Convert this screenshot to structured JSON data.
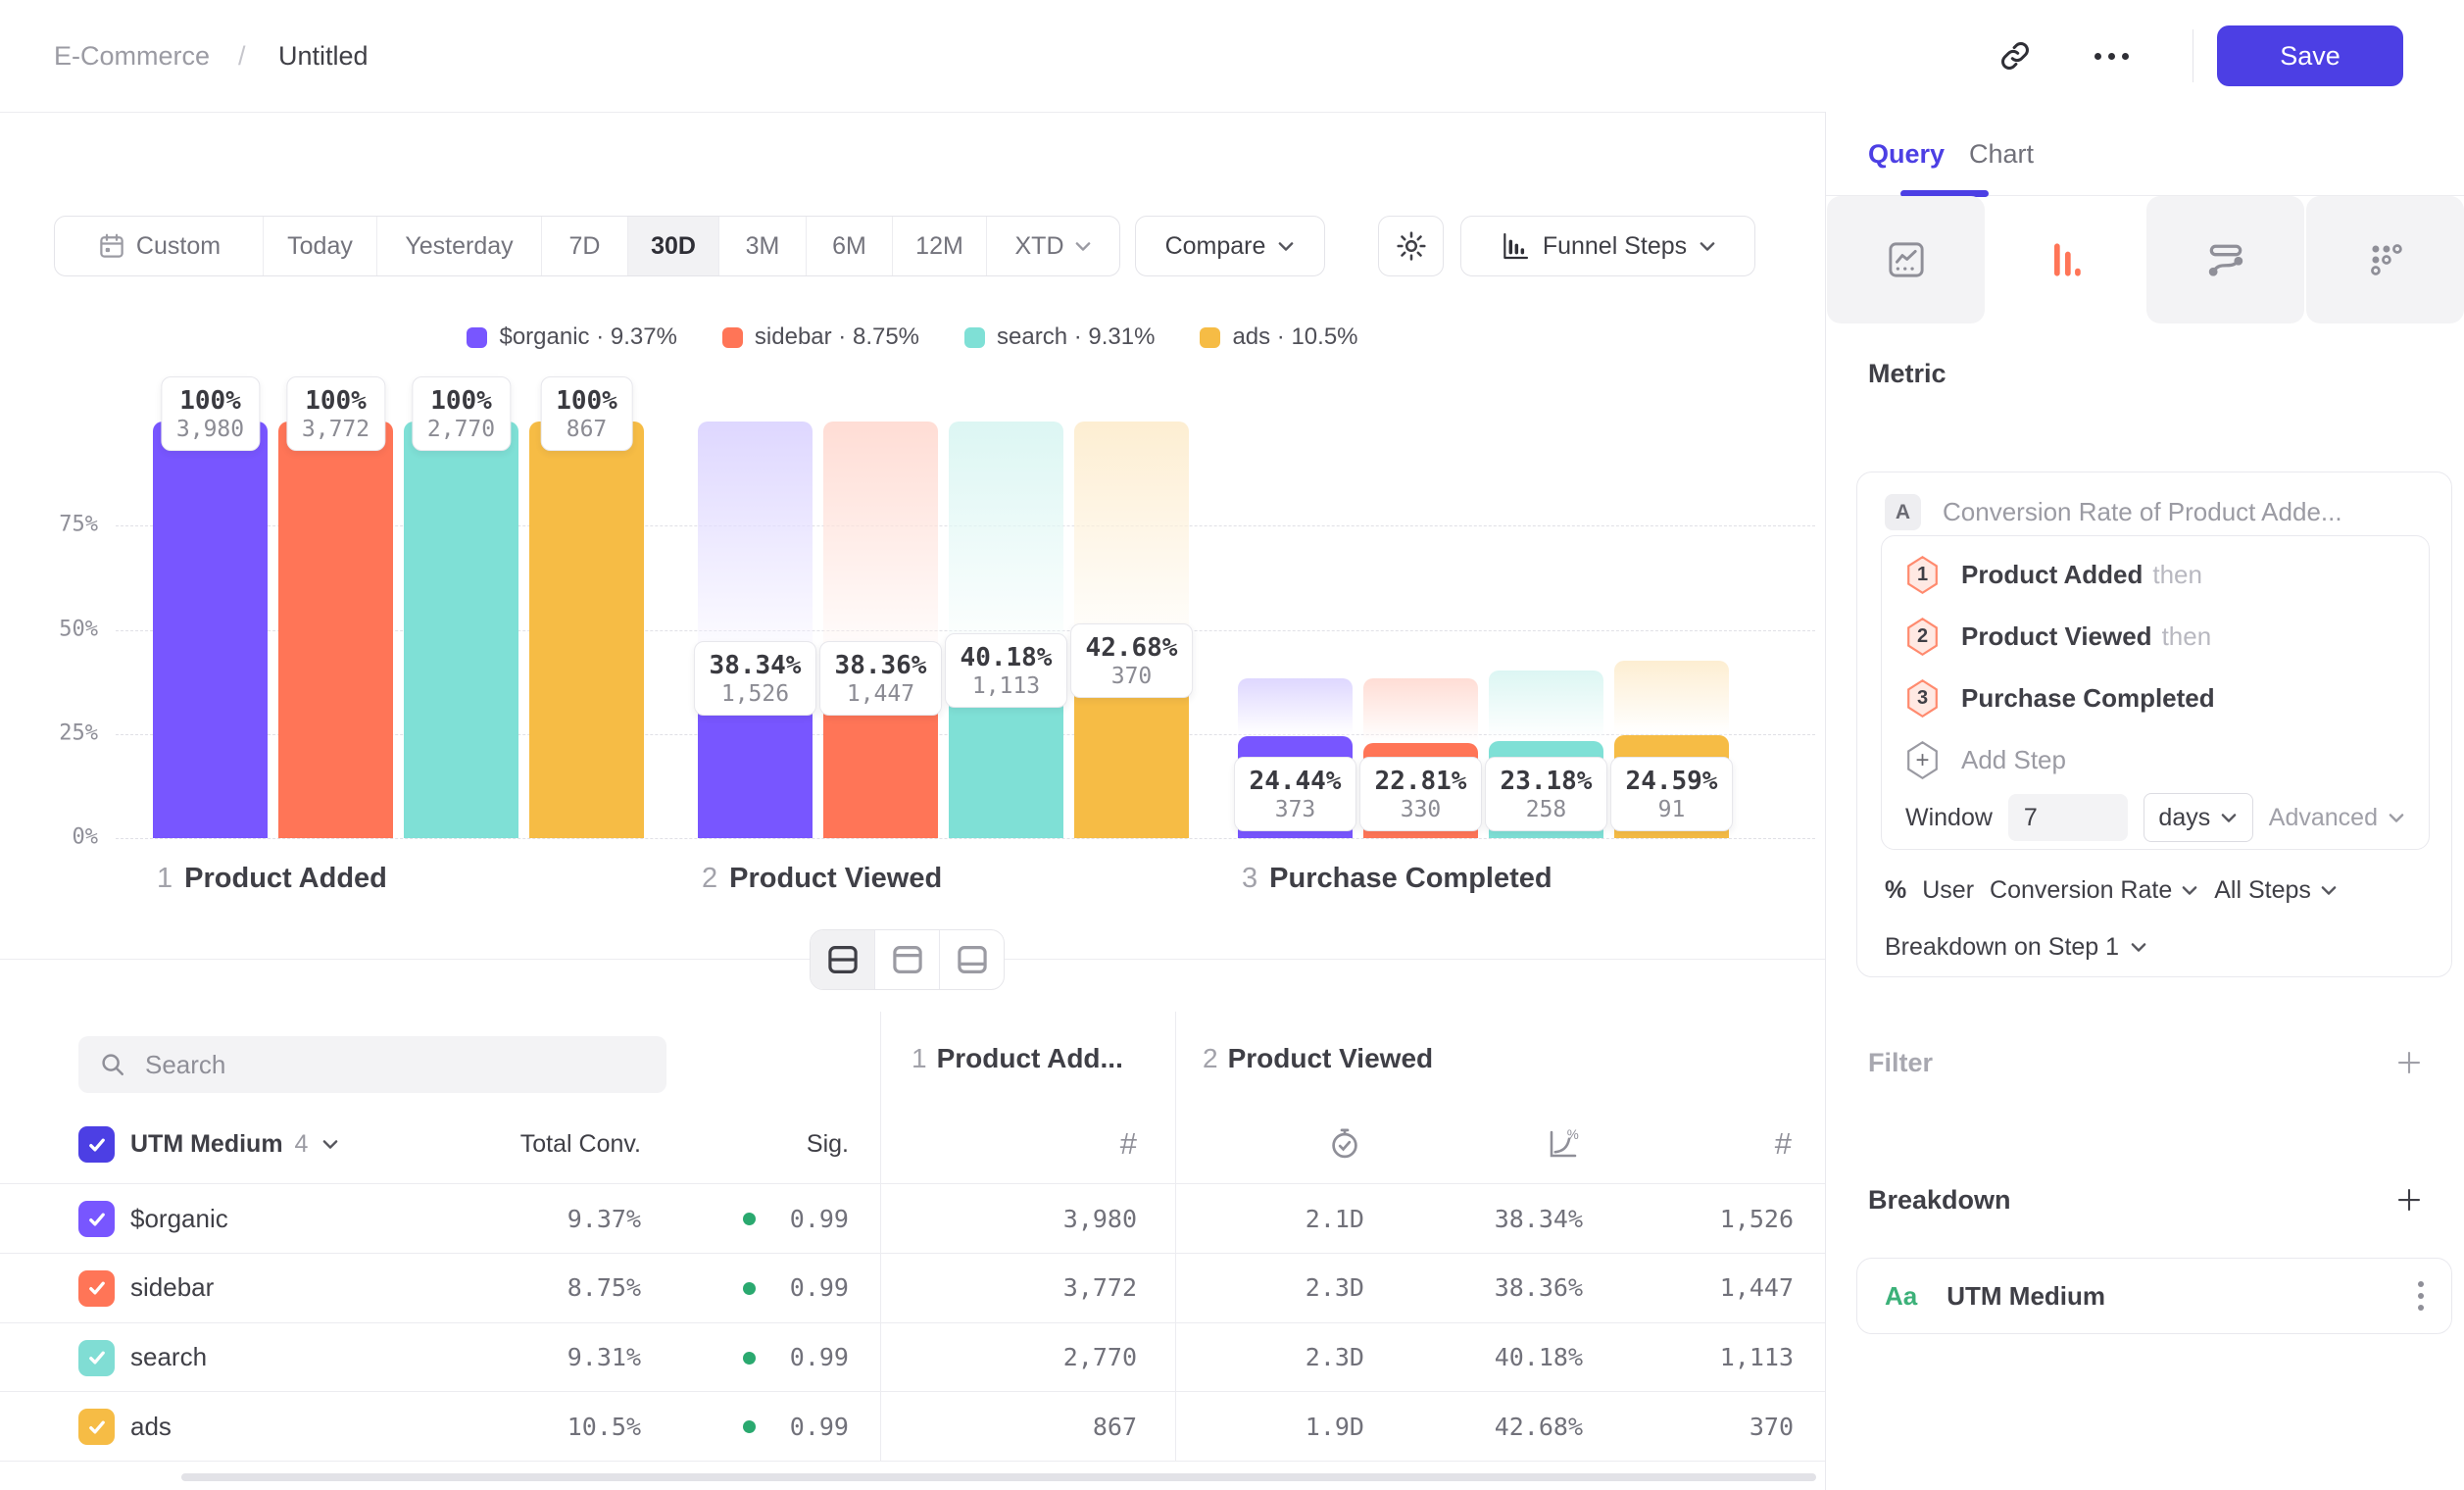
{
  "colors": {
    "accent": "#4c3fe4",
    "sig_green": "#2aa96f",
    "funnel_tab": "#ff7557",
    "aa_green": "#3cb179"
  },
  "topbar": {
    "breadcrumb_root": "E-Commerce",
    "breadcrumb_sep": "/",
    "breadcrumb_leaf": "Untitled",
    "save_label": "Save"
  },
  "toolbar": {
    "ranges": [
      "Custom",
      "Today",
      "Yesterday",
      "7D",
      "30D",
      "3M",
      "6M",
      "12M",
      "XTD"
    ],
    "selected_range": "30D",
    "compare_label": "Compare",
    "chart_type_label": "Funnel Steps"
  },
  "chart_data": {
    "type": "bar",
    "subtype": "funnel-steps",
    "ylim": [
      0,
      100
    ],
    "yticks": [
      {
        "label": "75%",
        "v": 75
      },
      {
        "label": "50%",
        "v": 50
      },
      {
        "label": "25%",
        "v": 25
      },
      {
        "label": "0%",
        "v": 0
      }
    ],
    "grid": "dashed-horizontal",
    "legend_position": "top-center",
    "steps": [
      {
        "num": "1",
        "label": "Product Added"
      },
      {
        "num": "2",
        "label": "Product Viewed"
      },
      {
        "num": "3",
        "label": "Purchase Completed"
      }
    ],
    "series": [
      {
        "name": "$organic",
        "overall": "9.37%",
        "color": "#7856ff",
        "light": "#ded7ff",
        "values": [
          {
            "pct": 100,
            "pct_label": "100%",
            "count": "3,980"
          },
          {
            "pct": 38.34,
            "pct_label": "38.34%",
            "count": "1,526"
          },
          {
            "pct": 24.44,
            "pct_label": "24.44%",
            "count": "373"
          }
        ]
      },
      {
        "name": "sidebar",
        "overall": "8.75%",
        "color": "#ff7557",
        "light": "#ffddd5",
        "values": [
          {
            "pct": 100,
            "pct_label": "100%",
            "count": "3,772"
          },
          {
            "pct": 38.36,
            "pct_label": "38.36%",
            "count": "1,447"
          },
          {
            "pct": 22.81,
            "pct_label": "22.81%",
            "count": "330"
          }
        ]
      },
      {
        "name": "search",
        "overall": "9.31%",
        "color": "#7fe0d6",
        "light": "#dcf6f3",
        "values": [
          {
            "pct": 100,
            "pct_label": "100%",
            "count": "2,770"
          },
          {
            "pct": 40.18,
            "pct_label": "40.18%",
            "count": "1,113"
          },
          {
            "pct": 23.18,
            "pct_label": "23.18%",
            "count": "258"
          }
        ]
      },
      {
        "name": "ads",
        "overall": "10.5%",
        "color": "#f6bc45",
        "light": "#fdeed2",
        "values": [
          {
            "pct": 100,
            "pct_label": "100%",
            "count": "867"
          },
          {
            "pct": 42.68,
            "pct_label": "42.68%",
            "count": "370"
          },
          {
            "pct": 24.59,
            "pct_label": "24.59%",
            "count": "91"
          }
        ]
      }
    ],
    "legend_separator": "·"
  },
  "table": {
    "search_placeholder": "Search",
    "group_label": "UTM Medium",
    "group_count": "4",
    "total_header": "Total Conv.",
    "sig_header": "Sig.",
    "step1_header": {
      "num": "1",
      "label": "Product Add..."
    },
    "step2_header": {
      "num": "2",
      "label": "Product Viewed"
    },
    "rows": [
      {
        "name": "$organic",
        "color": "#7856ff",
        "total": "9.37%",
        "sig": "0.99",
        "step1_count": "3,980",
        "step2_time": "2.1D",
        "step2_rate": "38.34%",
        "step2_count": "1,526"
      },
      {
        "name": "sidebar",
        "color": "#ff7557",
        "total": "8.75%",
        "sig": "0.99",
        "step1_count": "3,772",
        "step2_time": "2.3D",
        "step2_rate": "38.36%",
        "step2_count": "1,447"
      },
      {
        "name": "search",
        "color": "#80ddd4",
        "total": "9.31%",
        "sig": "0.99",
        "step1_count": "2,770",
        "step2_time": "2.3D",
        "step2_rate": "40.18%",
        "step2_count": "1,113"
      },
      {
        "name": "ads",
        "color": "#f6bc45",
        "total": "10.5%",
        "sig": "0.99",
        "step1_count": "867",
        "step2_time": "1.9D",
        "step2_rate": "42.68%",
        "step2_count": "370"
      }
    ]
  },
  "panel": {
    "tab_query": "Query",
    "tab_chart": "Chart",
    "metric_heading": "Metric",
    "metric_badge": "A",
    "metric_label": "Conversion Rate of Product Adde...",
    "steps": [
      {
        "num": "1",
        "label": "Product Added",
        "suffix": "then"
      },
      {
        "num": "2",
        "label": "Product Viewed",
        "suffix": "then"
      },
      {
        "num": "3",
        "label": "Purchase Completed",
        "suffix": ""
      }
    ],
    "add_step_label": "Add Step",
    "window_label": "Window",
    "window_value": "7",
    "window_unit": "days",
    "advanced_label": "Advanced",
    "measure_prefix": "%",
    "measure_entity": "User",
    "measure_metric": "Conversion Rate",
    "measure_scope": "All Steps",
    "breakdown_on_label": "Breakdown on Step 1",
    "filter_heading": "Filter",
    "breakdown_heading": "Breakdown",
    "breakdown_item_icon": "Aa",
    "breakdown_item_label": "UTM Medium"
  }
}
